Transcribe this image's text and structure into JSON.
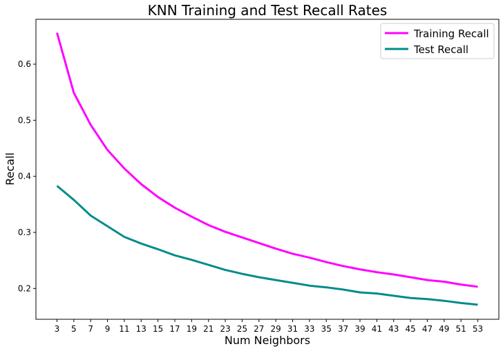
{
  "chart_data": {
    "type": "line",
    "title": "KNN Training and Test Recall Rates",
    "xlabel": "Num Neighbors",
    "ylabel": "Recall",
    "x": [
      3,
      5,
      7,
      9,
      11,
      13,
      15,
      17,
      19,
      21,
      23,
      25,
      27,
      29,
      31,
      33,
      35,
      37,
      39,
      41,
      43,
      45,
      47,
      49,
      51,
      53
    ],
    "xlim": [
      0.5,
      55.5
    ],
    "ylim": [
      0.145,
      0.68
    ],
    "yticks": [
      0.2,
      0.3,
      0.4,
      0.5,
      0.6
    ],
    "legend_position": "top-right",
    "grid": false,
    "series": [
      {
        "name": "Training Recall",
        "color": "#ff00ff",
        "values": [
          0.656,
          0.549,
          0.492,
          0.447,
          0.414,
          0.386,
          0.363,
          0.344,
          0.328,
          0.313,
          0.301,
          0.291,
          0.281,
          0.271,
          0.262,
          0.255,
          0.247,
          0.24,
          0.234,
          0.229,
          0.225,
          0.22,
          0.215,
          0.212,
          0.207,
          0.203
        ]
      },
      {
        "name": "Test Recall",
        "color": "#008b8b",
        "values": [
          0.383,
          0.358,
          0.33,
          0.311,
          0.292,
          0.28,
          0.27,
          0.259,
          0.251,
          0.242,
          0.233,
          0.226,
          0.22,
          0.215,
          0.21,
          0.205,
          0.202,
          0.198,
          0.193,
          0.191,
          0.187,
          0.183,
          0.181,
          0.178,
          0.174,
          0.171
        ]
      }
    ]
  }
}
